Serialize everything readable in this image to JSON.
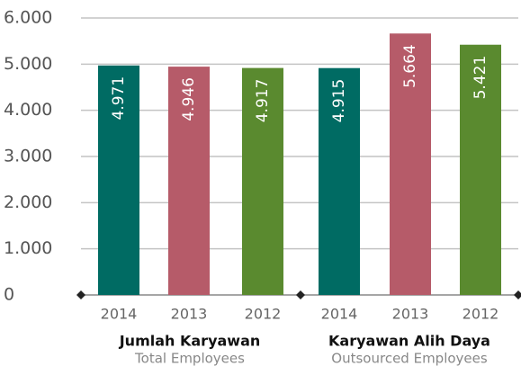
{
  "chart_data": {
    "type": "bar",
    "categories": [
      "2014",
      "2013",
      "2012",
      "2014",
      "2013",
      "2012"
    ],
    "values": [
      4971,
      4946,
      4917,
      4915,
      5664,
      5421
    ],
    "value_labels": [
      "4.971",
      "4.946",
      "4.917",
      "4.915",
      "5.664",
      "5.421"
    ],
    "colors": [
      "#006b63",
      "#b65b69",
      "#5a8a2f",
      "#006b63",
      "#b65b69",
      "#5a8a2f"
    ],
    "groups": [
      {
        "name": "Jumlah Karyawan",
        "subtitle": "Total Employees"
      },
      {
        "name": "Karyawan Alih Daya",
        "subtitle": "Outsourced Employees"
      }
    ],
    "ylim": [
      0,
      6000
    ],
    "yticks": [
      {
        "value": 0,
        "label": "0"
      },
      {
        "value": 1000,
        "label": "1.000"
      },
      {
        "value": 2000,
        "label": "2.000"
      },
      {
        "value": 3000,
        "label": "3.000"
      },
      {
        "value": 4000,
        "label": "4.000"
      },
      {
        "value": 5000,
        "label": "5.000"
      },
      {
        "value": 6000,
        "label": "6.000"
      }
    ],
    "grid": true
  }
}
